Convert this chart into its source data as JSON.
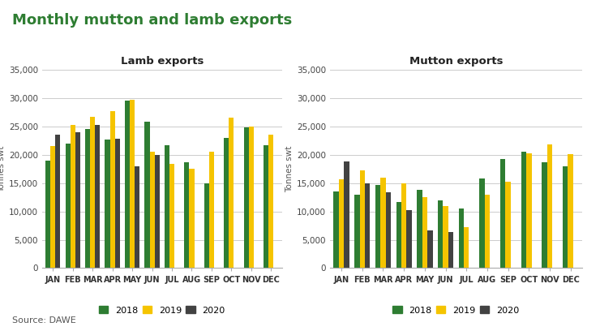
{
  "title": "Monthly mutton and lamb exports",
  "title_color": "#2e7d32",
  "source": "Source: DAWE",
  "months": [
    "JAN",
    "FEB",
    "MAR",
    "APR",
    "MAY",
    "JUN",
    "JUL",
    "AUG",
    "SEP",
    "OCT",
    "NOV",
    "DEC"
  ],
  "lamb": {
    "subtitle": "Lamb exports",
    "ylabel": "Tonnes swt",
    "y2018": [
      19000,
      22000,
      24500,
      22700,
      29500,
      25800,
      21700,
      18700,
      15000,
      23000,
      24800,
      21700
    ],
    "y2019": [
      21500,
      25200,
      26600,
      27600,
      29700,
      20500,
      18300,
      17500,
      20500,
      26500,
      24900,
      23500
    ],
    "y2020": [
      23500,
      23900,
      25200,
      22800,
      17900,
      19900,
      null,
      null,
      null,
      null,
      null,
      null
    ]
  },
  "mutton": {
    "subtitle": "Mutton exports",
    "ylabel": "Tonnes swt",
    "y2018": [
      13500,
      13000,
      14600,
      11700,
      13800,
      12000,
      10500,
      15800,
      19200,
      20500,
      18700,
      18000
    ],
    "y2019": [
      15600,
      17200,
      16000,
      14900,
      12500,
      11000,
      7200,
      13000,
      15200,
      20200,
      21800,
      20100
    ],
    "y2020": [
      18800,
      15000,
      13400,
      10200,
      6700,
      6400,
      null,
      null,
      null,
      null,
      null,
      null
    ]
  },
  "colors": {
    "2018": "#2e7d32",
    "2019": "#f5c400",
    "2020": "#424242"
  },
  "ylim": [
    0,
    35000
  ],
  "yticks": [
    0,
    5000,
    10000,
    15000,
    20000,
    25000,
    30000,
    35000
  ],
  "bar_width": 0.25,
  "background_color": "#ffffff",
  "grid_color": "#cccccc"
}
